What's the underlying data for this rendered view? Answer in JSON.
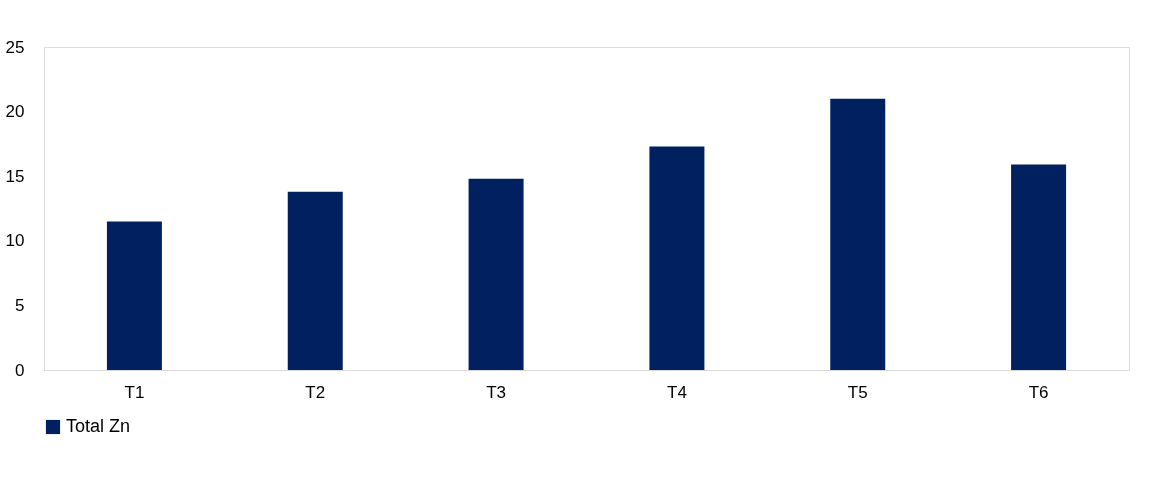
{
  "chart_data": {
    "type": "bar",
    "categories": [
      "T1",
      "T2",
      "T3",
      "T4",
      "T5",
      "T6"
    ],
    "series": [
      {
        "name": "Total Zn",
        "color": "#002060",
        "values": [
          11.5,
          13.8,
          14.8,
          17.3,
          21.0,
          15.9
        ]
      }
    ],
    "ylim": [
      0,
      25
    ],
    "yticks": [
      0,
      5,
      10,
      15,
      20,
      25
    ],
    "grid": false,
    "legend": "bottom"
  }
}
